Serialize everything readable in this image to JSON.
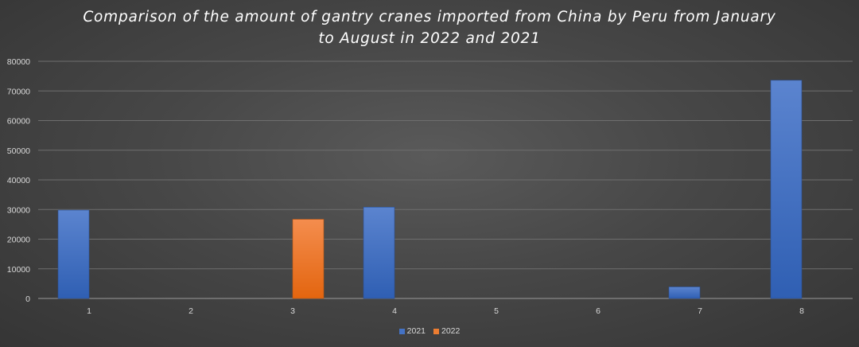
{
  "chart_data": {
    "type": "bar",
    "title_lines": [
      "Comparison of the amount of gantry cranes imported from China by Peru from January",
      "to August in 2022 and 2021"
    ],
    "categories": [
      "1",
      "2",
      "3",
      "4",
      "5",
      "6",
      "7",
      "8"
    ],
    "series": [
      {
        "name": "2021",
        "color": "#4472c4",
        "values": [
          29800,
          0,
          0,
          30800,
          0,
          0,
          3900,
          73600
        ]
      },
      {
        "name": "2022",
        "color": "#ed7d31",
        "values": [
          0,
          0,
          26700,
          0,
          0,
          0,
          0,
          0
        ]
      }
    ],
    "yticks": [
      "0",
      "10000",
      "20000",
      "30000",
      "40000",
      "50000",
      "60000",
      "70000",
      "80000"
    ],
    "ylim": [
      0,
      80000
    ],
    "grid": true,
    "legend_position": "bottom"
  }
}
